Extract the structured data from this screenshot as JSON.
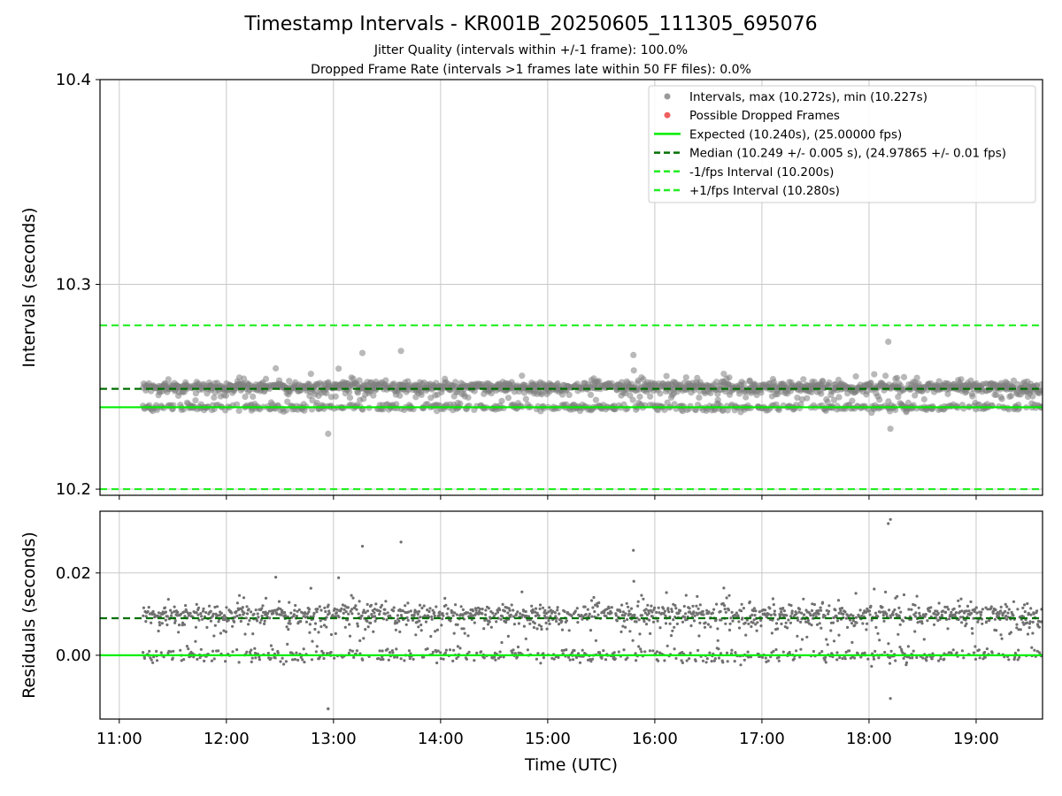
{
  "title": "Timestamp Intervals - KR001B_20250605_111305_695076",
  "subtitle_1": "Jitter Quality (intervals within +/-1 frame): 100.0%",
  "subtitle_2": "Dropped Frame Rate (intervals >1 frames late within 50 FF files): 0.0%",
  "colors": {
    "points": "#808080",
    "dropped": "#f06060",
    "expected": "#00ee00",
    "median": "#007000",
    "interval_bounds": "#22ee22",
    "grid": "#c8c8c8"
  },
  "chart_data": [
    {
      "type": "scatter",
      "panel": "top",
      "ylabel": "Intervals (seconds)",
      "ylim": [
        10.197,
        10.4
      ],
      "yticks": [
        10.2,
        10.3,
        10.4
      ],
      "ytick_labels": [
        "10.2",
        "10.3",
        "10.4"
      ],
      "xlim": [
        10.82,
        19.62
      ],
      "xticks": [
        11,
        12,
        13,
        14,
        15,
        16,
        17,
        18,
        19
      ],
      "grid": true,
      "legend_position": "top-right",
      "legend": [
        {
          "label": "Intervals, max (10.272s), min (10.227s)",
          "marker": "dot",
          "color": "#9a9a9a"
        },
        {
          "label": "Possible Dropped Frames",
          "marker": "dot",
          "color": "#f06060"
        },
        {
          "label": "Expected (10.240s), (25.00000 fps)",
          "marker": "solid",
          "color": "#00ee00"
        },
        {
          "label": "Median (10.249 +/- 0.005 s), (24.97865 +/- 0.01 fps)",
          "marker": "dashed",
          "color": "#007000"
        },
        {
          "label": "-1/fps Interval (10.200s)",
          "marker": "dashed",
          "color": "#22ee22"
        },
        {
          "label": "+1/fps Interval (10.280s)",
          "marker": "dashed",
          "color": "#22ee22"
        }
      ],
      "reference_lines": {
        "expected": 10.24,
        "median": 10.249,
        "minus_one_frame": 10.2,
        "plus_one_frame": 10.28
      },
      "points": {
        "x_start": 11.22,
        "x_end": 19.62,
        "count": 1900,
        "median": 10.249,
        "expected": 10.24,
        "max": 10.272,
        "min": 10.227,
        "max_at": 18.18,
        "min_at": 12.95
      },
      "dropped_frames": 0
    },
    {
      "type": "scatter",
      "panel": "bottom",
      "ylabel": "Residuals (seconds)",
      "xlabel": "Time (UTC)",
      "ylim": [
        -0.0155,
        0.035
      ],
      "yticks": [
        0.0,
        0.02
      ],
      "ytick_labels": [
        "0.00",
        "0.02"
      ],
      "xlim": [
        10.82,
        19.62
      ],
      "xticks": [
        11,
        12,
        13,
        14,
        15,
        16,
        17,
        18,
        19
      ],
      "xtick_labels": [
        "11:00",
        "12:00",
        "13:00",
        "14:00",
        "15:00",
        "16:00",
        "17:00",
        "18:00",
        "19:00"
      ],
      "grid": true,
      "reference_lines": {
        "zero": 0.0,
        "median_residual": 0.009
      },
      "residuals": {
        "max": 0.033,
        "min": -0.013
      }
    }
  ]
}
